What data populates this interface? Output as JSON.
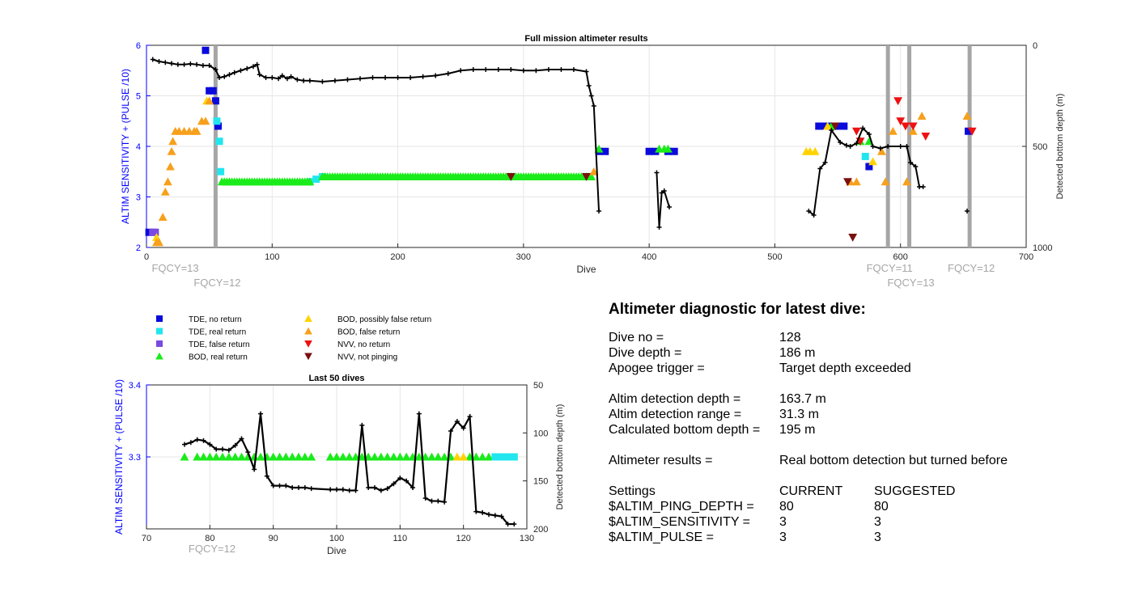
{
  "colors": {
    "blue_axis": "#0000ff",
    "gray_marker": "#a6a6a6",
    "TDE_no_return": "#0a0adc",
    "TDE_real_return": "#22e6ee",
    "TDE_false_return": "#7a4ae0",
    "BOD_real_return": "#1aeb1a",
    "BOD_possibly_false": "#ffd300",
    "BOD_false": "#f7a01c",
    "NVV_no_return": "#ee1111",
    "NVV_not_pinging": "#7a1010",
    "profile": "#000000"
  },
  "chart_data": [
    {
      "type": "scatter",
      "title": "Full mission altimeter results",
      "xlabel": "Dive",
      "ylabel_left": "ALTIM SENSITIVITY + (PULSE /10)",
      "ylabel_right": "Detected bottom depth (m)",
      "xlim": [
        0,
        700
      ],
      "ylim_left": [
        2,
        6
      ],
      "ylim_right": [
        0,
        1000
      ],
      "right_axis_reversed": true,
      "xticks": [
        0,
        100,
        200,
        300,
        400,
        500,
        600,
        700
      ],
      "yticks_left": [
        2,
        3,
        4,
        5,
        6
      ],
      "yticks_right": [
        0,
        500,
        1000
      ],
      "grid": true,
      "setting_change_markers": [
        {
          "dive": 55,
          "label": "FQCY=12",
          "row": 2
        },
        {
          "dive": 1,
          "label": "FQCY=13",
          "row": 1
        },
        {
          "dive": 590,
          "label": "FQCY=11",
          "row": 1
        },
        {
          "dive": 607,
          "label": "FQCY=13",
          "row": 2
        },
        {
          "dive": 655,
          "label": "FQCY=12",
          "row": 1
        }
      ],
      "series": [
        {
          "name": "TDE, no return",
          "marker": "square",
          "points": [
            [
              2,
              2.3
            ],
            [
              47,
              5.9
            ],
            [
              50,
              5.1
            ],
            [
              53,
              5.1
            ],
            [
              55,
              4.9
            ],
            [
              57,
              4.4
            ],
            [
              360,
              3.9
            ],
            [
              365,
              3.9
            ],
            [
              400,
              3.9
            ],
            [
              405,
              3.9
            ],
            [
              415,
              3.9
            ],
            [
              420,
              3.9
            ],
            [
              535,
              4.4
            ],
            [
              540,
              4.4
            ],
            [
              545,
              4.4
            ],
            [
              550,
              4.4
            ],
            [
              555,
              4.4
            ],
            [
              575,
              3.6
            ],
            [
              654,
              4.3
            ]
          ]
        },
        {
          "name": "TDE, real return",
          "marker": "square",
          "points": [
            [
              56,
              4.5
            ],
            [
              58,
              4.1
            ],
            [
              59,
              3.5
            ],
            [
              130,
              3.3
            ],
            [
              135,
              3.35
            ],
            [
              140,
              3.4
            ],
            [
              572,
              3.8
            ]
          ]
        },
        {
          "name": "TDE, false return",
          "marker": "square",
          "points": [
            [
              5,
              2.3
            ],
            [
              7,
              2.3
            ]
          ]
        },
        {
          "name": "BOD, real return",
          "marker": "triangle-up",
          "ranges": [
            [
              60,
              130,
              3.3
            ],
            [
              140,
              355,
              3.4
            ]
          ],
          "points": [
            [
              360,
              3.95
            ],
            [
              408,
              3.95
            ],
            [
              412,
              3.95
            ],
            [
              415,
              3.95
            ],
            [
              545,
              4.4
            ],
            [
              568,
              4.1
            ],
            [
              575,
              4.1
            ]
          ]
        },
        {
          "name": "BOD, possibly false return",
          "marker": "triangle-up",
          "points": [
            [
              8,
              2.2
            ],
            [
              48,
              4.9
            ],
            [
              525,
              3.9
            ],
            [
              528,
              3.9
            ],
            [
              532,
              3.9
            ],
            [
              542,
              4.4
            ],
            [
              578,
              3.7
            ]
          ]
        },
        {
          "name": "BOD, false return",
          "marker": "triangle-up",
          "points": [
            [
              8,
              2.1
            ],
            [
              10,
              2.1
            ],
            [
              13,
              2.6
            ],
            [
              15,
              3.1
            ],
            [
              17,
              3.3
            ],
            [
              19,
              3.6
            ],
            [
              20,
              3.9
            ],
            [
              21,
              4.1
            ],
            [
              23,
              4.3
            ],
            [
              26,
              4.3
            ],
            [
              30,
              4.3
            ],
            [
              34,
              4.3
            ],
            [
              38,
              4.3
            ],
            [
              40,
              4.3
            ],
            [
              44,
              4.5
            ],
            [
              47,
              4.5
            ],
            [
              50,
              4.9
            ],
            [
              356,
              3.5
            ],
            [
              560,
              3.3
            ],
            [
              565,
              3.3
            ],
            [
              588,
              3.3
            ],
            [
              594,
              4.3
            ],
            [
              605,
              3.3
            ],
            [
              610,
              4.3
            ],
            [
              617,
              4.6
            ],
            [
              653,
              4.6
            ],
            [
              585,
              3.9
            ]
          ]
        },
        {
          "name": "NVV, no return",
          "marker": "triangle-down",
          "points": [
            [
              598,
              4.9
            ],
            [
              600,
              4.5
            ],
            [
              604,
              4.4
            ],
            [
              610,
              4.4
            ],
            [
              620,
              4.2
            ],
            [
              565,
              4.3
            ],
            [
              568,
              4.1
            ],
            [
              657,
              4.3
            ]
          ]
        },
        {
          "name": "NVV, not pinging",
          "marker": "triangle-down",
          "points": [
            [
              290,
              3.4
            ],
            [
              350,
              3.4
            ],
            [
              558,
              3.3
            ],
            [
              562,
              2.2
            ],
            [
              548,
              4.4
            ]
          ]
        }
      ],
      "bottom_depth_profile": [
        [
          5,
          70
        ],
        [
          10,
          80
        ],
        [
          15,
          85
        ],
        [
          20,
          90
        ],
        [
          25,
          95
        ],
        [
          30,
          95
        ],
        [
          35,
          92
        ],
        [
          40,
          95
        ],
        [
          45,
          100
        ],
        [
          50,
          100
        ],
        [
          55,
          120
        ],
        [
          58,
          160
        ],
        [
          62,
          155
        ],
        [
          66,
          145
        ],
        [
          70,
          135
        ],
        [
          75,
          125
        ],
        [
          80,
          115
        ],
        [
          85,
          105
        ],
        [
          88,
          95
        ],
        [
          90,
          145
        ],
        [
          95,
          160
        ],
        [
          100,
          160
        ],
        [
          105,
          165
        ],
        [
          108,
          150
        ],
        [
          112,
          165
        ],
        [
          115,
          155
        ],
        [
          120,
          170
        ],
        [
          125,
          175
        ],
        [
          130,
          175
        ],
        [
          140,
          180
        ],
        [
          150,
          175
        ],
        [
          160,
          170
        ],
        [
          170,
          165
        ],
        [
          180,
          160
        ],
        [
          190,
          160
        ],
        [
          200,
          160
        ],
        [
          210,
          160
        ],
        [
          220,
          155
        ],
        [
          230,
          150
        ],
        [
          240,
          140
        ],
        [
          250,
          125
        ],
        [
          260,
          120
        ],
        [
          270,
          120
        ],
        [
          280,
          120
        ],
        [
          290,
          120
        ],
        [
          300,
          125
        ],
        [
          310,
          125
        ],
        [
          320,
          120
        ],
        [
          330,
          120
        ],
        [
          340,
          120
        ],
        [
          350,
          130
        ],
        [
          352,
          200
        ],
        [
          354,
          250
        ],
        [
          356,
          300
        ],
        [
          360,
          820
        ],
        [
          406,
          630
        ],
        [
          408,
          900
        ],
        [
          410,
          730
        ],
        [
          412,
          720
        ],
        [
          416,
          800
        ],
        [
          527,
          820
        ],
        [
          531,
          840
        ],
        [
          536,
          610
        ],
        [
          540,
          580
        ],
        [
          545,
          420
        ],
        [
          552,
          480
        ],
        [
          557,
          495
        ],
        [
          560,
          500
        ],
        [
          565,
          485
        ],
        [
          570,
          410
        ],
        [
          575,
          440
        ],
        [
          578,
          500
        ],
        [
          584,
          510
        ],
        [
          590,
          500
        ],
        [
          600,
          500
        ],
        [
          605,
          500
        ],
        [
          608,
          580
        ],
        [
          612,
          600
        ],
        [
          615,
          700
        ],
        [
          618,
          700
        ],
        [
          653,
          820
        ]
      ],
      "profile_spikes": [
        [
          88,
          95
        ],
        [
          100,
          100
        ],
        [
          110,
          105
        ],
        [
          118,
          105
        ]
      ]
    },
    {
      "type": "scatter",
      "title": "Last 50 dives",
      "xlabel": "Dive",
      "ylabel_left": "ALTIM SENSITIVITY + (PULSE /10)",
      "ylabel_right": "Detected bottom depth (m)",
      "xlim": [
        70,
        130
      ],
      "ylim_left": [
        3.2,
        3.4
      ],
      "ylim_right": [
        50,
        200
      ],
      "right_axis_reversed": true,
      "xticks": [
        70,
        80,
        90,
        100,
        110,
        120,
        130
      ],
      "yticks_left": [
        3.3,
        3.4
      ],
      "yticks_right": [
        50,
        100,
        150,
        200
      ],
      "grid": true,
      "setting_change_markers": [
        {
          "dive": 70,
          "label": "FQCY=12"
        }
      ],
      "series": [
        {
          "name": "BOD, real return",
          "marker": "triangle-up",
          "dives": [
            76,
            78,
            79,
            80,
            81,
            82,
            83,
            84,
            85,
            86,
            87,
            88,
            89,
            90,
            91,
            92,
            93,
            94,
            95,
            96,
            99,
            100,
            101,
            102,
            103,
            104,
            105,
            106,
            107,
            108,
            109,
            110,
            111,
            112,
            113,
            114,
            115,
            116,
            117,
            118,
            121,
            122,
            123,
            124
          ],
          "value": 3.3
        },
        {
          "name": "BOD, possibly false return",
          "marker": "triangle-up",
          "dives": [
            119,
            120
          ],
          "value": 3.3
        },
        {
          "name": "TDE, real return",
          "marker": "square",
          "dives": [
            125,
            126,
            127,
            128
          ],
          "value": 3.3
        }
      ],
      "bottom_depth_profile": [
        [
          76,
          112
        ],
        [
          77,
          110
        ],
        [
          78,
          107
        ],
        [
          79,
          108
        ],
        [
          80,
          112
        ],
        [
          81,
          117
        ],
        [
          82,
          117
        ],
        [
          83,
          118
        ],
        [
          84,
          113
        ],
        [
          85,
          106
        ],
        [
          86,
          120
        ],
        [
          87,
          138
        ],
        [
          88,
          80
        ],
        [
          89,
          145
        ],
        [
          90,
          155
        ],
        [
          91,
          155
        ],
        [
          92,
          155
        ],
        [
          93,
          157
        ],
        [
          94,
          157
        ],
        [
          95,
          157
        ],
        [
          96,
          158
        ],
        [
          99,
          159
        ],
        [
          100,
          159
        ],
        [
          101,
          159
        ],
        [
          102,
          160
        ],
        [
          103,
          160
        ],
        [
          104,
          92
        ],
        [
          105,
          157
        ],
        [
          106,
          157
        ],
        [
          107,
          160
        ],
        [
          108,
          158
        ],
        [
          109,
          153
        ],
        [
          110,
          147
        ],
        [
          111,
          150
        ],
        [
          112,
          157
        ],
        [
          113,
          80
        ],
        [
          114,
          168
        ],
        [
          115,
          171
        ],
        [
          116,
          171
        ],
        [
          117,
          172
        ],
        [
          118,
          98
        ],
        [
          119,
          88
        ],
        [
          120,
          95
        ],
        [
          121,
          83
        ],
        [
          122,
          182
        ],
        [
          123,
          183
        ],
        [
          124,
          185
        ],
        [
          125,
          186
        ],
        [
          126,
          187
        ],
        [
          127,
          195
        ],
        [
          128,
          195
        ]
      ]
    }
  ],
  "legend": [
    {
      "label": "TDE, no return",
      "marker": "square",
      "color_key": "TDE_no_return"
    },
    {
      "label": "TDE, real return",
      "marker": "square",
      "color_key": "TDE_real_return"
    },
    {
      "label": "TDE, false return",
      "marker": "square",
      "color_key": "TDE_false_return"
    },
    {
      "label": "BOD, real return",
      "marker": "triangle-up",
      "color_key": "BOD_real_return"
    },
    {
      "label": "BOD, possibly false return",
      "marker": "triangle-up",
      "color_key": "BOD_possibly_false"
    },
    {
      "label": "BOD, false return",
      "marker": "triangle-up",
      "color_key": "BOD_false"
    },
    {
      "label": "NVV, no return",
      "marker": "triangle-down",
      "color_key": "NVV_no_return"
    },
    {
      "label": "NVV, not pinging",
      "marker": "triangle-down",
      "color_key": "NVV_not_pinging"
    }
  ],
  "diagnostic": {
    "title": "Altimeter diagnostic for latest dive:",
    "dive_no_label": "Dive no =",
    "dive_no": "128",
    "dive_depth_label": "Dive depth =",
    "dive_depth": "186 m",
    "apogee_label": "Apogee trigger =",
    "apogee": "Target depth exceeded",
    "det_depth_label": "Altim detection depth =",
    "det_depth": "163.7 m",
    "det_range_label": "Altim detection range =",
    "det_range": "31.3 m",
    "calc_bottom_label": "Calculated bottom depth =",
    "calc_bottom": "195 m",
    "results_label": "Altimeter results =",
    "results": "Real bottom detection but turned before",
    "settings_label": "Settings",
    "current_label": "CURRENT",
    "suggested_label": "SUGGESTED",
    "settings": [
      {
        "name": "$ALTIM_PING_DEPTH =",
        "current": "80",
        "suggested": "80"
      },
      {
        "name": "$ALTIM_SENSITIVITY =",
        "current": "3",
        "suggested": "3"
      },
      {
        "name": "$ALTIM_PULSE =",
        "current": "3",
        "suggested": "3"
      }
    ]
  }
}
